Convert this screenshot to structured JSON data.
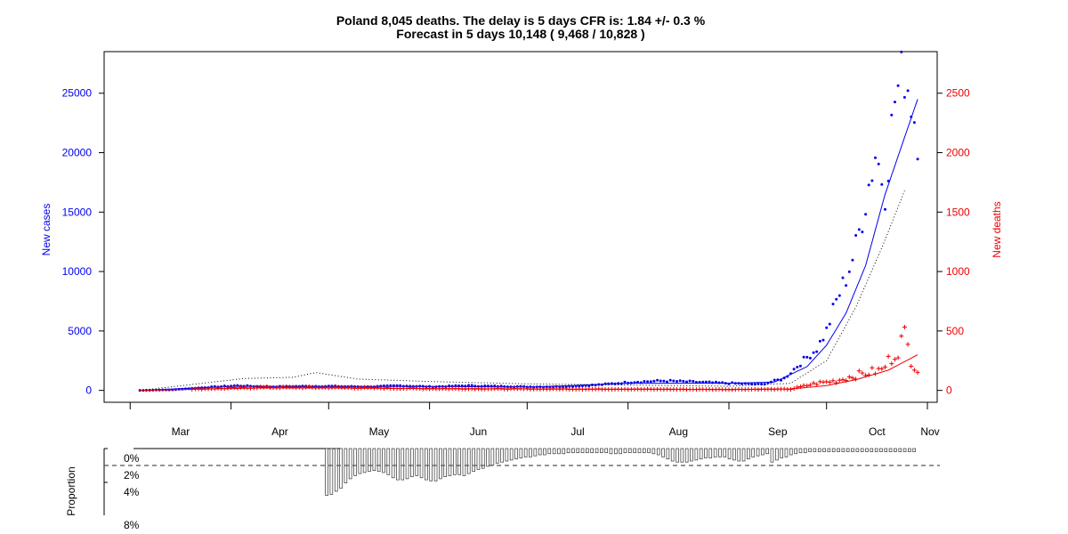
{
  "title_line1": "Poland 8,045 deaths. The delay is 5 days CFR is: 1.84 +/- 0.3 %",
  "title_line2": "Forecast in 5 days 10,148 ( 9,468 / 10,828 )",
  "colors": {
    "cases": "#0000ee",
    "deaths": "#ee0000",
    "axis": "#000000"
  },
  "chart_data": [
    {
      "type": "line",
      "title": "Poland 8,045 deaths. The delay is 5 days CFR is: 1.84 +/- 0.3 %",
      "subtitle": "Forecast in 5 days 10,148 ( 9,468 / 10,828 )",
      "xlabel": "",
      "x_start_date": "2020-03-04",
      "x_tick_labels": [
        "Mar",
        "Apr",
        "May",
        "Jun",
        "Jul",
        "Aug",
        "Sep",
        "Oct",
        "Nov"
      ],
      "x_tick_dates": [
        "2020-03-01",
        "2020-04-01",
        "2020-05-01",
        "2020-06-01",
        "2020-07-01",
        "2020-08-01",
        "2020-09-01",
        "2020-10-01",
        "2020-11-01"
      ],
      "y_left": {
        "label": "New cases",
        "ticks": [
          0,
          5000,
          10000,
          15000,
          20000,
          25000
        ],
        "range": [
          -1000,
          28500
        ]
      },
      "y_right": {
        "label": "New deaths",
        "ticks": [
          0,
          500,
          1000,
          1500,
          2000,
          2500
        ],
        "range": [
          -100,
          2850
        ]
      },
      "grid": false,
      "series": [
        {
          "name": "New cases",
          "axis": "left",
          "style": "points",
          "x": [
            "2020-03-04",
            "2020-03-14",
            "2020-03-24",
            "2020-04-03",
            "2020-04-13",
            "2020-04-23",
            "2020-05-03",
            "2020-05-13",
            "2020-05-23",
            "2020-06-02",
            "2020-06-12",
            "2020-06-22",
            "2020-07-02",
            "2020-07-12",
            "2020-07-22",
            "2020-08-02",
            "2020-08-12",
            "2020-08-22",
            "2020-09-01",
            "2020-09-11",
            "2020-09-18",
            "2020-09-23",
            "2020-09-28",
            "2020-10-01",
            "2020-10-04",
            "2020-10-07",
            "2020-10-10",
            "2020-10-13",
            "2020-10-16",
            "2020-10-19",
            "2020-10-22",
            "2020-10-25",
            "2020-10-27",
            "2020-10-29"
          ],
          "values": [
            0,
            50,
            250,
            400,
            300,
            350,
            350,
            300,
            400,
            300,
            400,
            350,
            300,
            300,
            450,
            700,
            800,
            700,
            600,
            500,
            1000,
            2300,
            3500,
            5000,
            7500,
            9500,
            12000,
            16000,
            20000,
            17000,
            24500,
            27000,
            24500,
            21700
          ]
        },
        {
          "name": "New cases trend",
          "axis": "left",
          "style": "line",
          "x": [
            "2020-03-04",
            "2020-04-03",
            "2020-05-03",
            "2020-06-02",
            "2020-07-02",
            "2020-08-02",
            "2020-09-01",
            "2020-09-15",
            "2020-09-25",
            "2020-10-01",
            "2020-10-07",
            "2020-10-13",
            "2020-10-19",
            "2020-10-24",
            "2020-10-29"
          ],
          "values": [
            0,
            350,
            330,
            330,
            280,
            600,
            600,
            700,
            2000,
            3800,
            6500,
            10500,
            16500,
            20500,
            24500
          ]
        },
        {
          "name": "Deaths forecast",
          "axis": "right",
          "style": "dotted",
          "x": [
            "2020-03-04",
            "2020-03-20",
            "2020-04-05",
            "2020-04-20",
            "2020-04-27",
            "2020-05-10",
            "2020-06-01",
            "2020-07-01",
            "2020-08-01",
            "2020-09-01",
            "2020-09-20",
            "2020-10-01",
            "2020-10-10",
            "2020-10-18",
            "2020-10-25"
          ],
          "values": [
            0,
            50,
            100,
            110,
            150,
            95,
            75,
            55,
            45,
            35,
            60,
            250,
            700,
            1200,
            1680
          ]
        },
        {
          "name": "New deaths",
          "axis": "right",
          "style": "cross",
          "x": [
            "2020-03-20",
            "2020-04-10",
            "2020-05-01",
            "2020-06-01",
            "2020-07-01",
            "2020-08-01",
            "2020-09-01",
            "2020-09-20",
            "2020-09-28",
            "2020-10-04",
            "2020-10-09",
            "2020-10-14",
            "2020-10-18",
            "2020-10-22",
            "2020-10-25",
            "2020-10-27",
            "2020-10-29"
          ],
          "values": [
            10,
            25,
            25,
            15,
            12,
            10,
            8,
            10,
            60,
            80,
            120,
            150,
            170,
            320,
            450,
            270,
            180
          ]
        },
        {
          "name": "New deaths trend",
          "axis": "right",
          "style": "line",
          "x": [
            "2020-03-04",
            "2020-04-10",
            "2020-05-01",
            "2020-06-01",
            "2020-07-01",
            "2020-08-01",
            "2020-09-01",
            "2020-09-20",
            "2020-10-01",
            "2020-10-10",
            "2020-10-20",
            "2020-10-29"
          ],
          "values": [
            0,
            20,
            20,
            15,
            12,
            10,
            8,
            12,
            40,
            90,
            170,
            300
          ]
        }
      ]
    },
    {
      "type": "bar",
      "ylabel": "Proportion",
      "tick_labels": [
        "0%",
        "2%",
        "4%",
        "8%"
      ],
      "reference_line_label": "2%",
      "x_start_date": "2020-04-30",
      "x_end_date": "2020-10-29",
      "values_percent": [
        4.5,
        4.4,
        4.1,
        3.8,
        3.3,
        2.9,
        2.6,
        2.4,
        2.3,
        2.2,
        2.1,
        2.2,
        2.3,
        2.5,
        2.8,
        3.0,
        3.0,
        2.9,
        2.7,
        2.6,
        2.8,
        3.0,
        3.1,
        3.1,
        2.9,
        2.7,
        2.6,
        2.5,
        2.5,
        2.6,
        2.4,
        2.2,
        2.0,
        1.9,
        1.7,
        1.6,
        1.4,
        1.3,
        1.2,
        1.1,
        1.0,
        0.9,
        0.8,
        0.8,
        0.7,
        0.6,
        0.6,
        0.5,
        0.5,
        0.5,
        0.5,
        0.4,
        0.4,
        0.4,
        0.4,
        0.4,
        0.4,
        0.4,
        0.4,
        0.4,
        0.5,
        0.5,
        0.5,
        0.4,
        0.4,
        0.4,
        0.4,
        0.4,
        0.4,
        0.5,
        0.6,
        0.8,
        1.0,
        1.2,
        1.3,
        1.3,
        1.3,
        1.2,
        1.1,
        1.0,
        0.9,
        0.9,
        0.8,
        0.8,
        0.8,
        1.0,
        1.1,
        1.2,
        1.2,
        1.0,
        0.8,
        0.7,
        0.6,
        0.5,
        1.3,
        1.1,
        0.9,
        0.8,
        0.6,
        0.5,
        0.4,
        0.4,
        0.3,
        0.3,
        0.3,
        0.3,
        0.3,
        0.3,
        0.3,
        0.3,
        0.3,
        0.3,
        0.3,
        0.3,
        0.3,
        0.3,
        0.3,
        0.3,
        0.3,
        0.3,
        0.3,
        0.3,
        0.3,
        0.3,
        0.3
      ]
    }
  ]
}
